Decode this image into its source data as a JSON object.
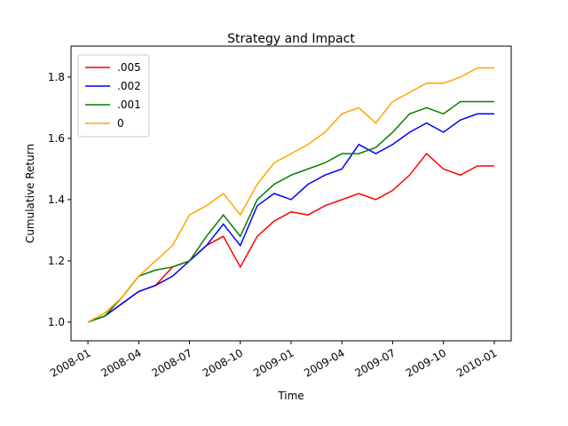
{
  "chart_data": {
    "type": "line",
    "title": "Strategy and Impact",
    "xlabel": "Time",
    "ylabel": "Cumulative Return",
    "x": [
      "2008-01",
      "2008-02",
      "2008-03",
      "2008-04",
      "2008-05",
      "2008-06",
      "2008-07",
      "2008-08",
      "2008-09",
      "2008-10",
      "2008-11",
      "2008-12",
      "2009-01",
      "2009-02",
      "2009-03",
      "2009-04",
      "2009-05",
      "2009-06",
      "2009-07",
      "2009-08",
      "2009-09",
      "2009-10",
      "2009-11",
      "2009-12",
      "2010-01"
    ],
    "series": [
      {
        "name": ".005",
        "color": "#ff0000",
        "values": [
          1.0,
          1.02,
          1.06,
          1.1,
          1.12,
          1.18,
          1.2,
          1.25,
          1.28,
          1.18,
          1.28,
          1.33,
          1.36,
          1.35,
          1.38,
          1.4,
          1.42,
          1.4,
          1.43,
          1.48,
          1.55,
          1.5,
          1.48,
          1.51,
          1.51
        ]
      },
      {
        "name": ".002",
        "color": "#0000ff",
        "values": [
          1.0,
          1.02,
          1.06,
          1.1,
          1.12,
          1.15,
          1.2,
          1.25,
          1.32,
          1.25,
          1.38,
          1.42,
          1.4,
          1.45,
          1.48,
          1.5,
          1.58,
          1.55,
          1.58,
          1.62,
          1.65,
          1.62,
          1.66,
          1.68,
          1.68
        ]
      },
      {
        "name": ".001",
        "color": "#008000",
        "values": [
          1.0,
          1.02,
          1.08,
          1.15,
          1.17,
          1.18,
          1.2,
          1.28,
          1.35,
          1.28,
          1.4,
          1.45,
          1.48,
          1.5,
          1.52,
          1.55,
          1.55,
          1.57,
          1.62,
          1.68,
          1.7,
          1.68,
          1.72,
          1.72,
          1.72
        ]
      },
      {
        "name": "0",
        "color": "#ffa500",
        "values": [
          1.0,
          1.03,
          1.08,
          1.15,
          1.2,
          1.25,
          1.35,
          1.38,
          1.42,
          1.35,
          1.45,
          1.52,
          1.55,
          1.58,
          1.62,
          1.68,
          1.7,
          1.65,
          1.72,
          1.75,
          1.78,
          1.78,
          1.8,
          1.83,
          1.83
        ]
      }
    ],
    "xlim": [
      "2007-12",
      "2010-02"
    ],
    "xticks": [
      "2008-01",
      "2008-04",
      "2008-07",
      "2008-10",
      "2009-01",
      "2009-04",
      "2009-07",
      "2009-10",
      "2010-01"
    ],
    "ylim": [
      0.939,
      1.901
    ],
    "yticks": [
      {
        "value": 1,
        "label": "1.0"
      },
      {
        "value": 1.2,
        "label": "1.2"
      },
      {
        "value": 1.4,
        "label": "1.4"
      },
      {
        "value": 1.6,
        "label": "1.6"
      },
      {
        "value": 1.8,
        "label": "1.8"
      }
    ],
    "legend": "upper left",
    "grid": false
  }
}
